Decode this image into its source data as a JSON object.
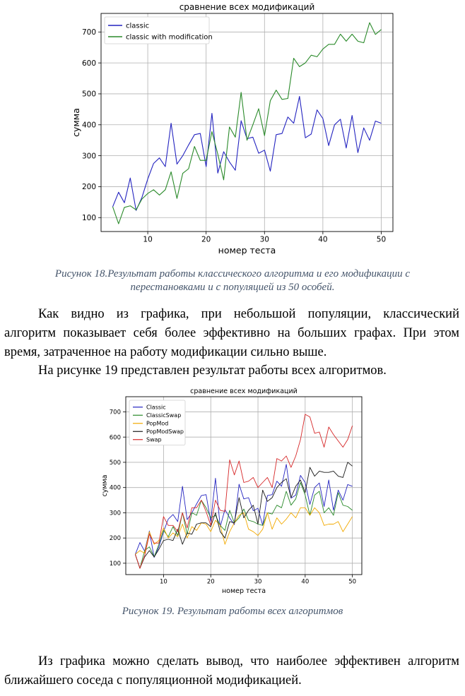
{
  "chart_data": [
    {
      "type": "line",
      "title": "сравнение всех модификаций",
      "xlabel": "номер теста",
      "ylabel": "сумма",
      "xlim": [
        2,
        52
      ],
      "ylim": [
        55,
        760
      ],
      "xticks": [
        "10",
        "20",
        "30",
        "40",
        "50"
      ],
      "yticks": [
        "100",
        "200",
        "300",
        "400",
        "500",
        "600",
        "700"
      ],
      "grid": true,
      "legend": "top-left",
      "x": [
        4,
        5,
        6,
        7,
        8,
        9,
        10,
        11,
        12,
        13,
        14,
        15,
        16,
        17,
        18,
        19,
        20,
        21,
        22,
        23,
        24,
        25,
        26,
        27,
        28,
        29,
        30,
        31,
        32,
        33,
        34,
        35,
        36,
        37,
        38,
        39,
        40,
        41,
        42,
        43,
        44,
        45,
        46,
        47,
        48,
        49,
        50
      ],
      "series": [
        {
          "name": "classic",
          "color": "#2424c0",
          "values": [
            135,
            182,
            148,
            228,
            123,
            165,
            225,
            275,
            293,
            265,
            405,
            273,
            300,
            335,
            368,
            372,
            265,
            437,
            244,
            313,
            280,
            253,
            413,
            355,
            360,
            308,
            318,
            250,
            368,
            372,
            425,
            405,
            492,
            358,
            370,
            448,
            420,
            333,
            400,
            418,
            325,
            430,
            310,
            390,
            350,
            412,
            405
          ]
        },
        {
          "name": "classic with modification",
          "color": "#2a8a2a",
          "values": [
            135,
            80,
            133,
            138,
            125,
            160,
            178,
            190,
            173,
            190,
            248,
            162,
            243,
            258,
            330,
            285,
            285,
            378,
            305,
            222,
            393,
            360,
            505,
            350,
            400,
            452,
            365,
            478,
            512,
            482,
            485,
            615,
            588,
            600,
            625,
            620,
            645,
            660,
            660,
            693,
            670,
            693,
            670,
            665,
            730,
            692,
            708
          ]
        }
      ]
    },
    {
      "type": "line",
      "title": "сравнение всех модификаций",
      "xlabel": "номер теста",
      "ylabel": "сумма",
      "xlim": [
        2,
        52
      ],
      "ylim": [
        55,
        760
      ],
      "xticks": [
        "10",
        "20",
        "30",
        "40",
        "50"
      ],
      "yticks": [
        "100",
        "200",
        "300",
        "400",
        "500",
        "600",
        "700"
      ],
      "grid": true,
      "legend": "top-left",
      "x": [
        4,
        5,
        6,
        7,
        8,
        9,
        10,
        11,
        12,
        13,
        14,
        15,
        16,
        17,
        18,
        19,
        20,
        21,
        22,
        23,
        24,
        25,
        26,
        27,
        28,
        29,
        30,
        31,
        32,
        33,
        34,
        35,
        36,
        37,
        38,
        39,
        40,
        41,
        42,
        43,
        44,
        45,
        46,
        47,
        48,
        49,
        50
      ],
      "series": [
        {
          "name": "Classic",
          "color": "#2424c0",
          "values": [
            135,
            182,
            148,
            228,
            123,
            165,
            225,
            275,
            293,
            265,
            405,
            273,
            300,
            335,
            368,
            372,
            265,
            437,
            244,
            313,
            280,
            253,
            413,
            355,
            360,
            308,
            318,
            250,
            368,
            372,
            425,
            405,
            492,
            358,
            370,
            448,
            420,
            333,
            400,
            418,
            325,
            430,
            310,
            390,
            350,
            412,
            405
          ]
        },
        {
          "name": "ClassicSwap",
          "color": "#2a8a2a",
          "values": [
            135,
            80,
            150,
            165,
            125,
            175,
            230,
            205,
            245,
            210,
            300,
            215,
            300,
            290,
            350,
            320,
            280,
            290,
            250,
            230,
            310,
            260,
            280,
            315,
            270,
            265,
            255,
            250,
            300,
            295,
            330,
            320,
            385,
            330,
            355,
            420,
            370,
            290,
            370,
            385,
            300,
            320,
            290,
            380,
            330,
            325,
            310
          ]
        },
        {
          "name": "PopMod",
          "color": "#f2a900",
          "values": [
            135,
            150,
            140,
            225,
            175,
            190,
            240,
            200,
            220,
            205,
            255,
            200,
            245,
            230,
            260,
            255,
            225,
            270,
            250,
            175,
            225,
            260,
            290,
            300,
            235,
            225,
            210,
            235,
            300,
            235,
            280,
            255,
            275,
            300,
            280,
            320,
            320,
            290,
            320,
            300,
            250,
            255,
            255,
            265,
            225,
            255,
            285
          ]
        },
        {
          "name": "PopModSwap",
          "color": "#1a1a1a",
          "values": [
            135,
            80,
            125,
            150,
            125,
            155,
            190,
            195,
            190,
            235,
            175,
            220,
            215,
            255,
            260,
            260,
            245,
            300,
            225,
            200,
            265,
            260,
            360,
            280,
            310,
            330,
            255,
            390,
            345,
            360,
            400,
            420,
            435,
            360,
            405,
            430,
            380,
            480,
            445,
            465,
            460,
            460,
            465,
            445,
            440,
            500,
            485
          ]
        },
        {
          "name": "Swap",
          "color": "#d62728",
          "values": [
            135,
            80,
            130,
            215,
            180,
            180,
            285,
            250,
            250,
            225,
            300,
            240,
            320,
            320,
            350,
            305,
            250,
            350,
            310,
            305,
            510,
            450,
            505,
            420,
            425,
            440,
            400,
            420,
            440,
            400,
            515,
            505,
            525,
            480,
            525,
            590,
            690,
            680,
            615,
            620,
            560,
            640,
            610,
            585,
            560,
            590,
            645
          ]
        }
      ]
    }
  ],
  "captions": {
    "fig18": [
      "Рисунок 18.Результат работы классического алгоритма и его модификации с",
      "перестановками и с популяцией из 50 особей."
    ],
    "fig19": "Рисунок 19. Результат работы всех алгоритмов"
  },
  "paragraphs": {
    "p1": [
      "Как видно из графика, при небольшой популяции, классический",
      "алгоритм показывает себя более эффективно на больших графах. При этом",
      "время, затраченное на работу модификации сильно выше."
    ],
    "p2": "На рисунке 19 представлен результат работы всех алгоритмов.",
    "p3": [
      "Из графика можно сделать вывод, что наиболее эффективен алгоритм",
      "ближайшего соседа с популяционной модификацией."
    ]
  }
}
